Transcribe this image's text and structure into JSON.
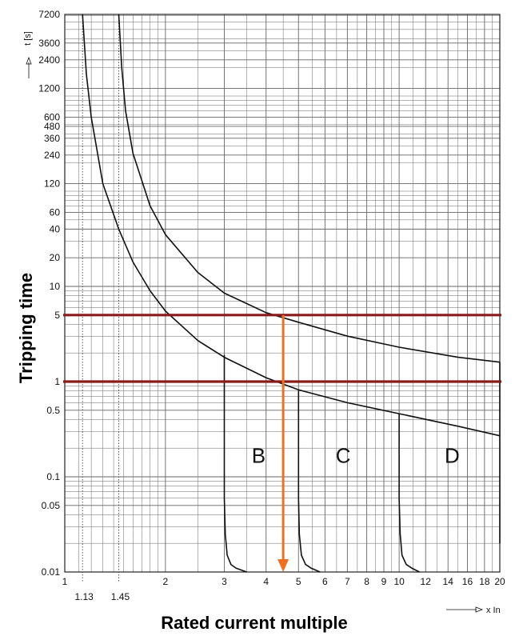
{
  "chart_data": {
    "type": "line",
    "xlabel": "Rated current multiple",
    "ylabel": "Tripping time",
    "x_unit": "x In",
    "y_unit": "t [s]",
    "xscale": "log",
    "yscale": "log",
    "xlim": [
      1,
      20
    ],
    "ylim": [
      0.01,
      7200
    ],
    "grid": true,
    "x_ticks": [
      1,
      2,
      3,
      4,
      5,
      6,
      7,
      8,
      9,
      10,
      12,
      14,
      16,
      18,
      20
    ],
    "x_tick_labels": [
      "1",
      "2",
      "3",
      "4",
      "5",
      "6",
      "7",
      "8",
      "9",
      "10",
      "12",
      "14",
      "16",
      "18",
      "20"
    ],
    "x_reference_lines": [
      1.13,
      1.45
    ],
    "x_reference_labels": [
      "1.13",
      "1.45"
    ],
    "y_ticks": [
      0.01,
      0.05,
      0.1,
      0.5,
      1,
      5,
      10,
      20,
      40,
      60,
      120,
      240,
      360,
      480,
      600,
      1200,
      2400,
      3600,
      7200
    ],
    "y_tick_labels": [
      "0.01",
      "0.05",
      "0.1",
      "0.5",
      "1",
      "5",
      "10",
      "20",
      "40",
      "60",
      "120",
      "240",
      "360",
      "480",
      "600",
      "1200",
      "2400",
      "3600",
      "7200"
    ],
    "series": [
      {
        "x": [
          1.13,
          1.16,
          1.2,
          1.3,
          1.45,
          1.6,
          1.8,
          2.0,
          2.5,
          3.0,
          4.0,
          5.0,
          7.0,
          10.0,
          15.0,
          20.0
        ],
        "y": [
          7200,
          1700,
          600,
          120,
          40,
          18,
          9,
          5.5,
          2.7,
          1.8,
          1.1,
          0.82,
          0.6,
          0.46,
          0.34,
          0.27
        ]
      },
      {
        "x": [
          1.45,
          1.48,
          1.52,
          1.6,
          1.8,
          2.0,
          2.5,
          3.0,
          4.0,
          5.0,
          7.0,
          10.0,
          15.0,
          20.0
        ],
        "y": [
          7200,
          2000,
          700,
          250,
          70,
          35,
          14,
          8.5,
          5.3,
          4.2,
          3.0,
          2.3,
          1.8,
          1.6
        ]
      },
      {
        "x": [
          3,
          3,
          3.02,
          3.06,
          3.14,
          3.25,
          3.5
        ],
        "y": [
          1.9,
          0.06,
          0.025,
          0.015,
          0.012,
          0.011,
          0.01
        ]
      },
      {
        "x": [
          5,
          5,
          5.03,
          5.1,
          5.25,
          5.45,
          5.8
        ],
        "y": [
          0.8,
          0.06,
          0.025,
          0.015,
          0.012,
          0.011,
          0.01
        ]
      },
      {
        "x": [
          10,
          10,
          10.07,
          10.2,
          10.5,
          10.9,
          11.5
        ],
        "y": [
          0.46,
          0.06,
          0.025,
          0.015,
          0.012,
          0.011,
          0.01
        ]
      },
      {
        "x": [
          20,
          20
        ],
        "y": [
          1.6,
          0.02
        ]
      }
    ],
    "highlight_lines": [
      {
        "axis": "y",
        "value": 5,
        "color": "#8b1a1a"
      },
      {
        "axis": "y",
        "value": 1,
        "color": "#8b1a1a"
      }
    ],
    "arrow": {
      "x": 4.5,
      "from_y": 5,
      "to_y": 0.01,
      "color": "#f07020"
    },
    "regions": [
      {
        "label": "B",
        "x": 3.8,
        "y": 0.14
      },
      {
        "label": "C",
        "x": 6.8,
        "y": 0.14
      },
      {
        "label": "D",
        "x": 14.4,
        "y": 0.14
      }
    ],
    "colors": {
      "curve": "#111111",
      "grid": "#666666",
      "highlight": "#8b1a1a",
      "arrow": "#f07020"
    }
  }
}
